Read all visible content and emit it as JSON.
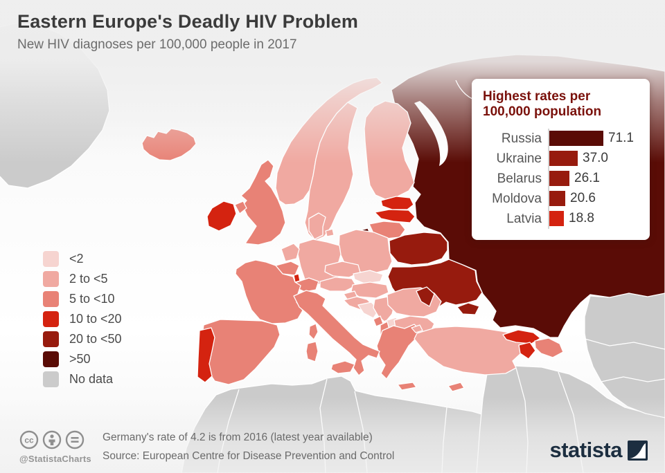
{
  "header": {
    "title": "Eastern Europe's Deadly HIV Problem",
    "subtitle": "New HIV diagnoses per 100,000 people in 2017"
  },
  "legend": {
    "items": [
      {
        "label": "<2",
        "color": "#f6d4d0"
      },
      {
        "label": "2 to <5",
        "color": "#f0a9a1"
      },
      {
        "label": "5 to <10",
        "color": "#e88276"
      },
      {
        "label": "10 to <20",
        "color": "#d42310"
      },
      {
        "label": "20 to <50",
        "color": "#971b0e"
      },
      {
        "label": ">50",
        "color": "#5a0c06"
      },
      {
        "label": "No data",
        "color": "#cbcbcb"
      }
    ]
  },
  "callout": {
    "title_line1": "Highest rates per",
    "title_line2": "100,000 population",
    "bars": [
      {
        "country": "Russia",
        "value": "71.1",
        "numeric": 71.1,
        "color": "#5a0c06"
      },
      {
        "country": "Ukraine",
        "value": "37.0",
        "numeric": 37.0,
        "color": "#971b0e"
      },
      {
        "country": "Belarus",
        "value": "26.1",
        "numeric": 26.1,
        "color": "#971b0e"
      },
      {
        "country": "Moldova",
        "value": "20.6",
        "numeric": 20.6,
        "color": "#971b0e"
      },
      {
        "country": "Latvia",
        "value": "18.8",
        "numeric": 18.8,
        "color": "#d42310"
      }
    ]
  },
  "footer": {
    "icons": [
      "cc-icon",
      "attribution-icon",
      "no-derivatives-icon"
    ],
    "handle": "@StatistaCharts",
    "note": "Germany's rate of 4.2 is from 2016 (latest year available)",
    "source": "Source: European Centre for Disease Prevention and Control",
    "icon_color": "#8f8f8f"
  },
  "brand": {
    "name": "statista",
    "logo": "statista-logo-mark",
    "color": "#1c2e40"
  },
  "chart_data": [
    {
      "type": "choropleth",
      "title": "New HIV diagnoses per 100,000 people in 2017",
      "year": "2017",
      "legend_position": "left",
      "bins": [
        {
          "label": "<2",
          "color": "#f6d4d0"
        },
        {
          "label": "2 to <5",
          "color": "#f0a9a1"
        },
        {
          "label": "5 to <10",
          "color": "#e88276"
        },
        {
          "label": "10 to <20",
          "color": "#d42310"
        },
        {
          "label": "20 to <50",
          "color": "#971b0e"
        },
        {
          "label": ">50",
          "color": "#5a0c06"
        },
        {
          "label": "No data",
          "color": "#cbcbcb"
        }
      ],
      "countries": {
        "Iceland": "5 to <10",
        "Norway": "2 to <5",
        "Sweden": "2 to <5",
        "Finland": "2 to <5",
        "Denmark": "2 to <5",
        "Estonia": "10 to <20",
        "Latvia": "10 to <20",
        "Lithuania": "5 to <10",
        "Russia": ">50",
        "Belarus": "20 to <50",
        "Ukraine": "20 to <50",
        "Moldova": "20 to <50",
        "Poland": "2 to <5",
        "Germany": "2 to <5",
        "Netherlands": "2 to <5",
        "Belgium": "5 to <10",
        "Luxembourg": "10 to <20",
        "United Kingdom": "5 to <10",
        "Ireland": "10 to <20",
        "France": "5 to <10",
        "Spain": "5 to <10",
        "Portugal": "10 to <20",
        "Italy": "5 to <10",
        "Switzerland": "5 to <10",
        "Austria": "2 to <5",
        "Czechia": "2 to <5",
        "Slovakia": "<2",
        "Hungary": "2 to <5",
        "Slovenia": "2 to <5",
        "Croatia": "2 to <5",
        "Bosnia and Herzegovina": "<2",
        "Serbia": "2 to <5",
        "Montenegro": "5 to <10",
        "Albania": "5 to <10",
        "North Macedonia": "<2",
        "Greece": "5 to <10",
        "Bulgaria": "2 to <5",
        "Romania": "2 to <5",
        "Turkey": "2 to <5",
        "Cyprus": "5 to <10",
        "Georgia": "10 to <20",
        "Armenia": "10 to <20",
        "Azerbaijan": "5 to <10",
        "Greenland": "No data",
        "North Africa": "No data",
        "Middle East": "No data",
        "Central Asia": "No data"
      }
    },
    {
      "type": "bar",
      "title": "Highest rates per 100,000 population",
      "categories": [
        "Russia",
        "Ukraine",
        "Belarus",
        "Moldova",
        "Latvia"
      ],
      "values": [
        71.1,
        37.0,
        26.1,
        20.6,
        18.8
      ],
      "bar_colors": [
        "#5a0c06",
        "#971b0e",
        "#971b0e",
        "#971b0e",
        "#d42310"
      ],
      "orientation": "horizontal"
    }
  ]
}
